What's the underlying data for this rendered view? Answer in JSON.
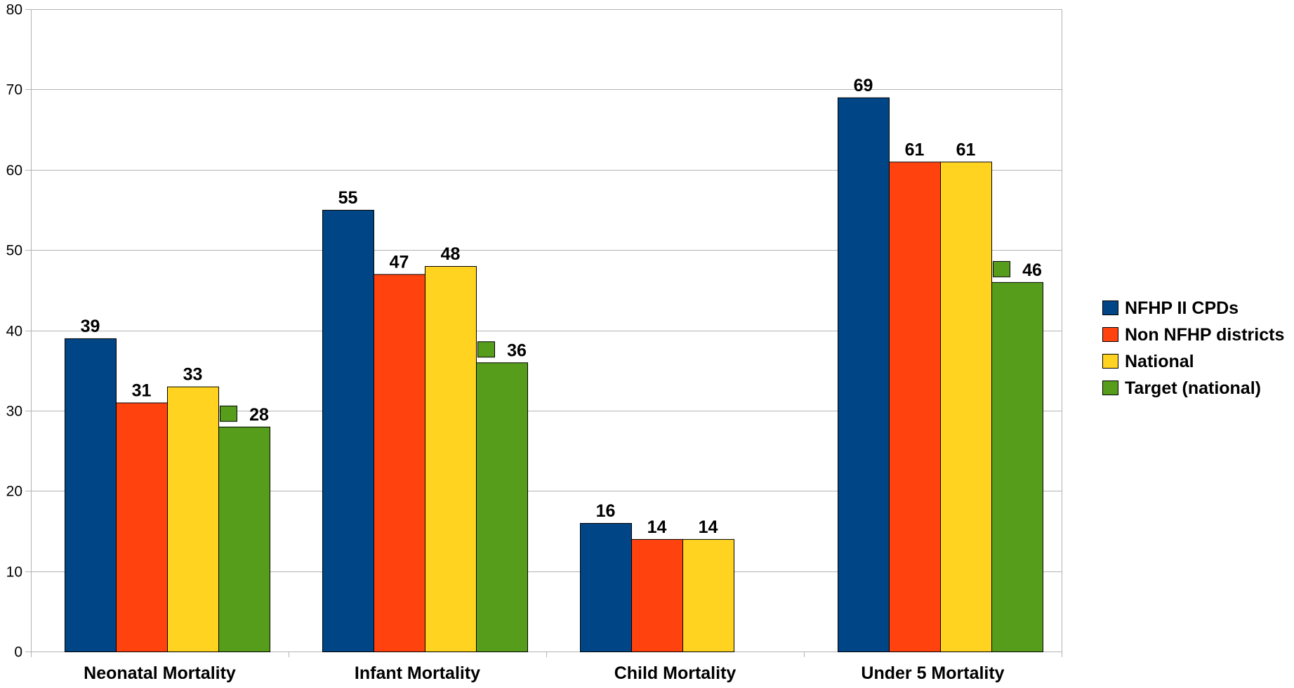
{
  "chart_data": {
    "type": "bar",
    "title": "",
    "xlabel": "",
    "ylabel": "",
    "ylim": [
      0,
      80
    ],
    "yticks": [
      0,
      10,
      20,
      30,
      40,
      50,
      60,
      70,
      80
    ],
    "grid": true,
    "legend_position": "right",
    "categories": [
      "Neonatal Mortality",
      "Infant Mortality",
      "Child Mortality",
      "Under 5 Mortality"
    ],
    "series": [
      {
        "name": "NFHP II CPDs",
        "color": "#004586",
        "values": [
          39,
          55,
          16,
          69
        ]
      },
      {
        "name": "Non NFHP districts",
        "color": "#ff420e",
        "values": [
          31,
          47,
          14,
          61
        ]
      },
      {
        "name": "National",
        "color": "#ffd320",
        "values": [
          33,
          48,
          14,
          61
        ]
      },
      {
        "name": "Target (national)",
        "color": "#579d1c",
        "values": [
          28,
          36,
          null,
          46
        ]
      }
    ]
  }
}
